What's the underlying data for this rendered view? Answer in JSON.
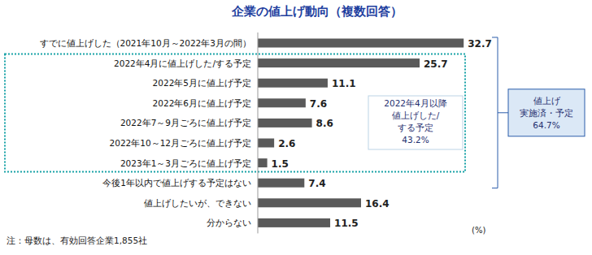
{
  "chart_data": {
    "type": "bar",
    "orientation": "horizontal",
    "title": "企業の値上げ動向（複数回答）",
    "categories": [
      "すでに値上げした（2021年10月～2022年3月の間）",
      "2022年4月に値上げした/する予定",
      "2022年5月に値上げ予定",
      "2022年6月に値上げ予定",
      "2022年7～9月ごろに値上げ予定",
      "2022年10～12月ごろに値上げ予定",
      "2023年1～3月ごろに値上げ予定",
      "今後1年以内で値上げする予定はない",
      "値上げしたいが、できない",
      "分からない"
    ],
    "values": [
      32.7,
      25.7,
      11.1,
      7.6,
      8.6,
      2.6,
      1.5,
      7.4,
      16.4,
      11.5
    ],
    "color": "#5a5a5a",
    "xlim": [
      0,
      35
    ],
    "data_labels": true,
    "tick_labels": "y",
    "x_label": "(%)",
    "annotations": [
      {
        "text": [
          "2022年4月以降",
          "値上げした/",
          "する予定",
          "43.2%"
        ]
      },
      {
        "text": [
          "値上げ",
          "実施済・予定",
          "64.7%"
        ]
      }
    ],
    "note": "注：母数は、有効回答企業1,855社"
  }
}
